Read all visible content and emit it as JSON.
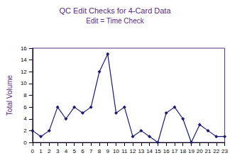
{
  "chart_data": {
    "type": "line",
    "title": "QC Edit Checks for 4-Card Data",
    "subtitle": "Edit = Time Check",
    "y_label": "Total Volume",
    "categories": [
      "0",
      "1",
      "2",
      "3",
      "4",
      "5",
      "6",
      "7",
      "8",
      "9",
      "10",
      "11",
      "12",
      "13",
      "14",
      "15",
      "16",
      "17",
      "18",
      "19",
      "20",
      "21",
      "22",
      "23"
    ],
    "values": [
      2,
      1,
      2,
      6,
      4,
      6,
      5,
      6,
      12,
      15,
      5,
      6,
      1,
      2,
      1,
      0,
      5,
      6,
      4,
      0,
      3,
      2,
      1,
      1
    ],
    "color": "#1a1a6e",
    "marker": "diamond",
    "ylim": [
      0,
      16
    ],
    "yticks": [
      0,
      2,
      4,
      6,
      8,
      10,
      12,
      14,
      16
    ],
    "grid": false
  }
}
